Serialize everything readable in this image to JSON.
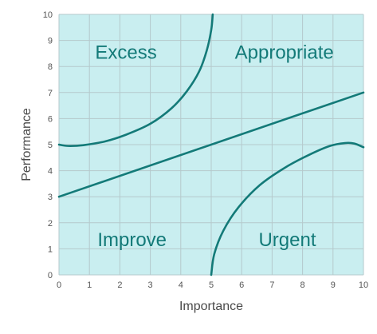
{
  "chart_data": {
    "type": "line",
    "title": "",
    "xlabel": "Importance",
    "ylabel": "Performance",
    "xlim": [
      0,
      10
    ],
    "ylim": [
      0,
      10
    ],
    "x_ticks": [
      "0",
      "1",
      "2",
      "3",
      "4",
      "5",
      "6",
      "7",
      "8",
      "9",
      "10"
    ],
    "y_ticks": [
      "0",
      "1",
      "2",
      "3",
      "4",
      "5",
      "6",
      "7",
      "8",
      "9",
      "10"
    ],
    "grid": true,
    "legend": "none",
    "colors": {
      "plot_background": "#c9eef0",
      "grid": "#b5c9cc",
      "curve": "#137a78",
      "label": "#137a78"
    },
    "series": [
      {
        "points": [
          [
            0,
            3
          ],
          [
            10,
            7
          ]
        ]
      },
      {
        "points": [
          [
            0,
            5
          ],
          [
            0.3,
            4.95
          ],
          [
            0.8,
            4.98
          ],
          [
            1.5,
            5.12
          ],
          [
            2.2,
            5.38
          ],
          [
            3,
            5.8
          ],
          [
            3.7,
            6.4
          ],
          [
            4.2,
            7.05
          ],
          [
            4.6,
            7.8
          ],
          [
            4.85,
            8.6
          ],
          [
            5.0,
            9.4
          ],
          [
            5.05,
            10
          ]
        ]
      },
      {
        "points": [
          [
            5,
            0
          ],
          [
            5.1,
            0.8
          ],
          [
            5.4,
            1.7
          ],
          [
            5.9,
            2.6
          ],
          [
            6.6,
            3.45
          ],
          [
            7.4,
            4.1
          ],
          [
            8.2,
            4.6
          ],
          [
            8.9,
            4.95
          ],
          [
            9.4,
            5.06
          ],
          [
            9.7,
            5.04
          ],
          [
            10,
            4.9
          ]
        ]
      }
    ],
    "annotations": [
      {
        "text": "Excess",
        "x": 2.2,
        "y": 8.3
      },
      {
        "text": "Appropriate",
        "x": 7.4,
        "y": 8.3
      },
      {
        "text": "Improve",
        "x": 2.4,
        "y": 1.1
      },
      {
        "text": "Urgent",
        "x": 7.5,
        "y": 1.1
      }
    ]
  }
}
